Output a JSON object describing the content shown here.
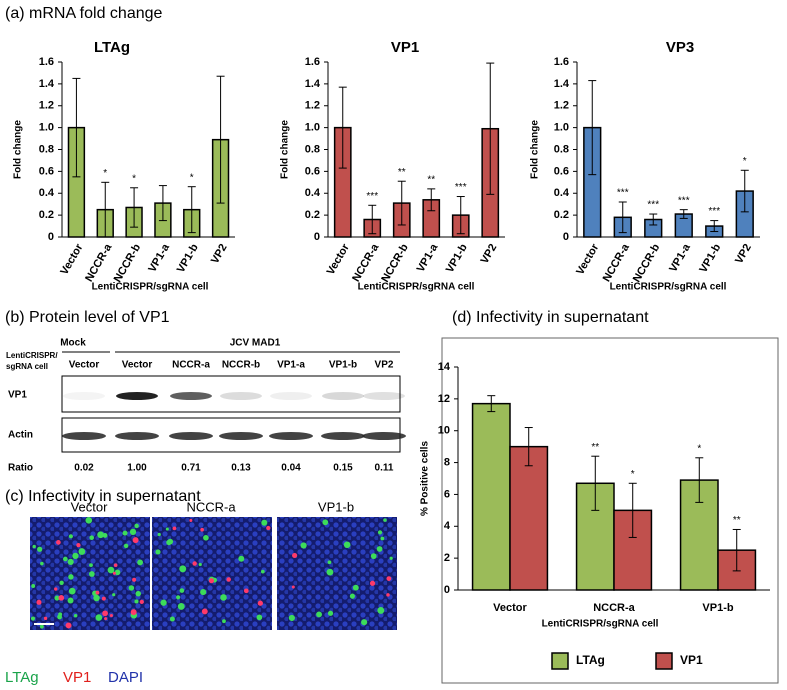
{
  "figure": {
    "panel_a": "(a) mRNA fold change",
    "panel_b": "(b) Protein level of VP1",
    "panel_c": "(c) Infectivity in supernatant",
    "panel_d": "(d) Infectivity in supernatant"
  },
  "chart_data": [
    {
      "type": "bar",
      "title": "LTAg",
      "ylabel": "Fold change",
      "xlabel": "LentiCRISPR/sgRNA cell",
      "categories": [
        "Vector",
        "NCCR-a",
        "NCCR-b",
        "VP1-a",
        "VP1-b",
        "VP2"
      ],
      "values": [
        1.0,
        0.25,
        0.27,
        0.31,
        0.25,
        0.89
      ],
      "errors": [
        0.45,
        0.25,
        0.18,
        0.16,
        0.21,
        0.58
      ],
      "annotations": [
        null,
        "*",
        "*",
        null,
        "*",
        null
      ],
      "color": "#9bbb59",
      "ylim": [
        0,
        1.6
      ],
      "yticks": [
        0,
        0.2,
        0.4,
        0.6,
        0.8,
        {
          "value": 1,
          "label": "1.0"
        },
        1.2,
        1.4,
        1.6
      ]
    },
    {
      "type": "bar",
      "title": "VP1",
      "ylabel": "Fold change",
      "xlabel": "LentiCRISPR/sgRNA cell",
      "categories": [
        "Vector",
        "NCCR-a",
        "NCCR-b",
        "VP1-a",
        "VP1-b",
        "VP2"
      ],
      "values": [
        1.0,
        0.16,
        0.31,
        0.34,
        0.2,
        0.99
      ],
      "errors": [
        0.37,
        0.13,
        0.2,
        0.1,
        0.17,
        0.6
      ],
      "annotations": [
        null,
        "***",
        "**",
        "**",
        "***",
        null
      ],
      "color": "#c0504d",
      "ylim": [
        0,
        1.6
      ],
      "yticks": [
        0,
        0.2,
        0.4,
        0.6,
        0.8,
        {
          "value": 1,
          "label": "1.0"
        },
        1.2,
        1.4,
        1.6
      ]
    },
    {
      "type": "bar",
      "title": "VP3",
      "ylabel": "Fold change",
      "xlabel": "LentiCRISPR/sgRNA cell",
      "categories": [
        "Vector",
        "NCCR-a",
        "NCCR-b",
        "VP1-a",
        "VP1-b",
        "VP2"
      ],
      "values": [
        1.0,
        0.18,
        0.16,
        0.21,
        0.1,
        0.42
      ],
      "errors": [
        0.43,
        0.14,
        0.05,
        0.04,
        0.05,
        0.19
      ],
      "annotations": [
        null,
        "***",
        "***",
        "***",
        "***",
        "*"
      ],
      "color": "#4f81bd",
      "ylim": [
        0,
        1.6
      ],
      "yticks": [
        0,
        0.2,
        0.4,
        0.6,
        0.8,
        {
          "value": 1,
          "label": "1.0"
        },
        1.2,
        1.4,
        1.6
      ]
    },
    {
      "type": "grouped_bar",
      "ylabel": "% Positive cells",
      "xlabel": "LentiCRISPR/sgRNA cell",
      "categories": [
        "Vector",
        "NCCR-a",
        "VP1-b"
      ],
      "series": [
        {
          "name": "LTAg",
          "color": "#9bbb59",
          "values": [
            11.7,
            6.7,
            6.9
          ],
          "errors": [
            0.5,
            1.7,
            1.4
          ],
          "annotations": [
            null,
            "**",
            "*"
          ]
        },
        {
          "name": "VP1",
          "color": "#c0504d",
          "values": [
            9.0,
            5.0,
            2.5
          ],
          "errors": [
            1.2,
            1.7,
            1.3
          ],
          "annotations": [
            null,
            "*",
            "**"
          ]
        }
      ],
      "ylim": [
        0,
        14
      ],
      "yticks": [
        0,
        2,
        4,
        6,
        8,
        10,
        12,
        14
      ],
      "legend": "bottom"
    }
  ],
  "blot": {
    "groups": [
      "Mock",
      "JCV MAD1"
    ],
    "row_header": [
      "LentiCRISPR/",
      "sgRNA cell"
    ],
    "lanes": [
      "Vector",
      "Vector",
      "NCCR-a",
      "NCCR-b",
      "VP1-a",
      "VP1-b",
      "VP2"
    ],
    "rows": [
      "VP1",
      "Actin"
    ],
    "ratio_label": "Ratio",
    "ratios": [
      "0.02",
      "1.00",
      "0.71",
      "0.13",
      "0.04",
      "0.15",
      "0.11"
    ]
  },
  "images": {
    "labels": [
      "Vector",
      "NCCR-a",
      "VP1-b"
    ],
    "stains": [
      "LTAg",
      "VP1",
      "DAPI"
    ]
  }
}
